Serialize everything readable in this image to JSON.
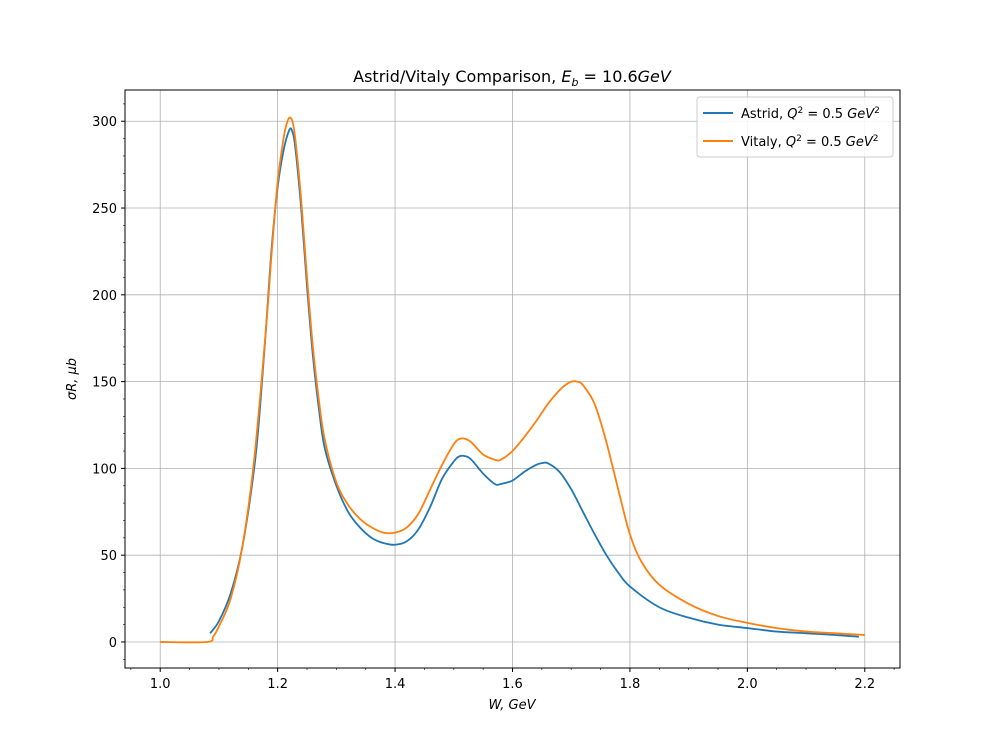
{
  "chart_data": {
    "type": "line",
    "title": {
      "prefix": "Astrid/Vitaly Comparison, ",
      "math_symbol": "E",
      "math_sub": "b",
      "math_rest": " = 10.6",
      "math_unit": "GeV"
    },
    "xlabel": "W, GeV",
    "ylabel": "σR, μb",
    "xlim": [
      0.94,
      2.26
    ],
    "ylim": [
      -15,
      318
    ],
    "x_ticks": [
      1.0,
      1.2,
      1.4,
      1.6,
      1.8,
      2.0,
      2.2
    ],
    "x_tick_labels": [
      "1.0",
      "1.2",
      "1.4",
      "1.6",
      "1.8",
      "2.0",
      "2.2"
    ],
    "y_ticks": [
      0,
      50,
      100,
      150,
      200,
      250,
      300
    ],
    "y_tick_labels": [
      "0",
      "50",
      "100",
      "150",
      "200",
      "250",
      "300"
    ],
    "grid": true,
    "legend_position": "top-right",
    "series": [
      {
        "name": "Astrid, Q² = 0.5 GeV²",
        "legend_parts": {
          "label": "Astrid, ",
          "q": "Q",
          "q_exp": "2",
          "eq": " = 0.5 ",
          "unit": "GeV",
          "unit_exp": "2"
        },
        "color": "#1f77b4",
        "x": [
          1.085,
          1.1,
          1.12,
          1.14,
          1.16,
          1.17,
          1.18,
          1.19,
          1.2,
          1.21,
          1.22,
          1.225,
          1.23,
          1.24,
          1.25,
          1.26,
          1.27,
          1.28,
          1.3,
          1.32,
          1.34,
          1.36,
          1.38,
          1.4,
          1.42,
          1.44,
          1.46,
          1.48,
          1.5,
          1.51,
          1.52,
          1.53,
          1.55,
          1.57,
          1.58,
          1.6,
          1.62,
          1.64,
          1.65,
          1.66,
          1.68,
          1.7,
          1.72,
          1.74,
          1.76,
          1.78,
          1.8,
          1.85,
          1.9,
          1.95,
          2.0,
          2.05,
          2.1,
          2.15,
          2.19
        ],
        "y": [
          5,
          12,
          28,
          55,
          100,
          135,
          180,
          228,
          262,
          283,
          295,
          294,
          285,
          250,
          205,
          165,
          135,
          112,
          90,
          75,
          66,
          60,
          57,
          56,
          58,
          65,
          78,
          94,
          104,
          107,
          107,
          105,
          97,
          91,
          91,
          93,
          98,
          102,
          103,
          103,
          98,
          88,
          75,
          62,
          50,
          40,
          32,
          20,
          14,
          10,
          8,
          6,
          5,
          4,
          3
        ]
      },
      {
        "name": "Vitaly, Q² = 0.5 GeV²",
        "legend_parts": {
          "label": "Vitaly, ",
          "q": "Q",
          "q_exp": "2",
          "eq": " = 0.5 ",
          "unit": "GeV",
          "unit_exp": "2"
        },
        "color": "#ff7f0e",
        "x": [
          1.0,
          1.08,
          1.09,
          1.1,
          1.12,
          1.14,
          1.16,
          1.18,
          1.19,
          1.2,
          1.21,
          1.215,
          1.22,
          1.225,
          1.23,
          1.24,
          1.25,
          1.26,
          1.27,
          1.28,
          1.3,
          1.32,
          1.34,
          1.36,
          1.38,
          1.4,
          1.42,
          1.44,
          1.46,
          1.48,
          1.5,
          1.51,
          1.52,
          1.53,
          1.55,
          1.57,
          1.58,
          1.6,
          1.62,
          1.64,
          1.66,
          1.68,
          1.69,
          1.7,
          1.71,
          1.72,
          1.74,
          1.76,
          1.78,
          1.8,
          1.82,
          1.85,
          1.9,
          1.95,
          2.0,
          2.05,
          2.1,
          2.15,
          2.2
        ],
        "y": [
          0,
          0,
          3,
          9,
          25,
          55,
          105,
          180,
          225,
          265,
          290,
          298,
          302,
          300,
          290,
          255,
          210,
          170,
          140,
          117,
          92,
          79,
          71,
          66,
          63,
          63,
          66,
          74,
          88,
          102,
          114,
          117,
          117,
          115,
          108,
          105,
          105,
          110,
          118,
          127,
          137,
          145,
          148,
          150,
          150,
          148,
          137,
          115,
          88,
          62,
          46,
          33,
          22,
          15,
          11,
          8,
          6,
          5,
          4
        ]
      }
    ]
  }
}
